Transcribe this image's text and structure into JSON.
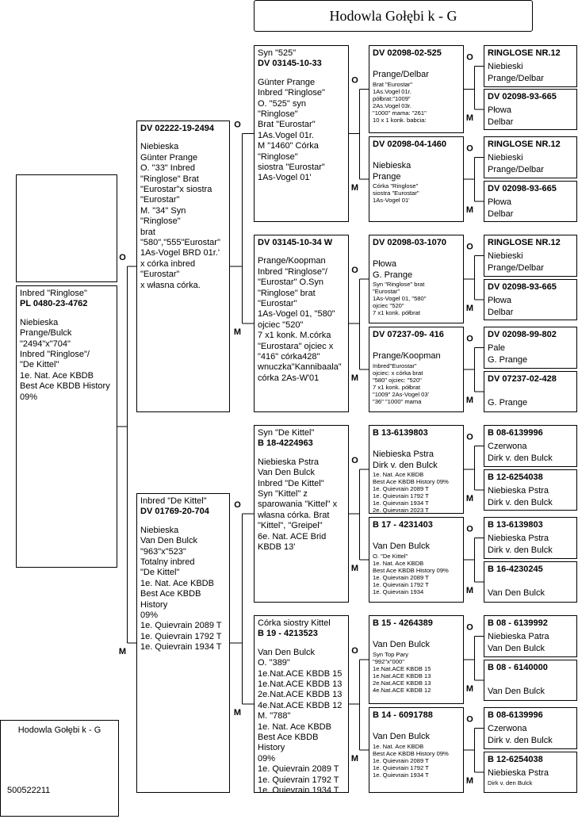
{
  "title": "Hodowla Gołębi k - G",
  "footer": {
    "number": "500522211"
  },
  "labels": {
    "father": "O",
    "mother": "M"
  },
  "subject": {
    "head": [
      "Inbred \"Ringlose\""
    ],
    "ring": "PL 0480-23-4762",
    "lines": [
      "Niebieska",
      "Prange/Bulck",
      "\"2494\"x\"704\"",
      "Inbred \"Ringlose\"/",
      "\"De Kittel\"",
      "1e. Nat. Ace KBDB",
      "Best Ace KBDB History",
      "09%"
    ]
  },
  "parents": [
    {
      "ring": "DV 02222-19-2494",
      "lines": [
        "Niebieska",
        "Günter Prange",
        "O. \"33\" Inbred",
        "\"Ringlose\" Brat",
        "\"Eurostar\"x siostra",
        "\"Eurostar\"",
        "M. \"34\" Syn \"Ringlose\"",
        "brat",
        "\"580\",\"555\"Eurostar\"",
        " 1As-Vogel BRD 01r.'",
        "x córka inbred",
        "\"Eurostar\"",
        "x własna córka."
      ]
    },
    {
      "head": [
        "Inbred \"De Kittel\""
      ],
      "ring": "DV 01769-20-704",
      "lines": [
        "Niebieska",
        "Van Den Bulck",
        "\"963\"x\"523\"",
        "Totalny inbred",
        "\"De Kittel\"",
        "1e. Nat. Ace KBDB",
        "Best Ace KBDB History",
        "09%",
        "1e. Quievrain 2089 T",
        "1e. Quievrain 1792 T",
        "1e. Quievrain 1934 T"
      ]
    }
  ],
  "grandparents": [
    {
      "head": [
        "Syn \"525\""
      ],
      "ring": "DV 03145-10-33",
      "lines": [
        "Günter Prange",
        "Inbred \"Ringlose\"",
        "O. \"525\" syn \"Ringlose\"",
        "Brat \"Eurostar\"",
        "1As.Vogel 01r.",
        "M \"1460\" Córka",
        "\"Ringlose\"",
        "siostra \"Eurostar\"",
        "1As-Vogel 01'"
      ]
    },
    {
      "ring": "DV 03145-10-34 W",
      "lines": [
        "Prange/Koopman",
        "Inbred \"Ringlose\"/",
        "\"Eurostar\" O.Syn",
        "\"Ringlose\" brat",
        "\"Eurostar\"",
        "1As-Vogel 01, \"580\"",
        "ojciec \"520\"",
        "7 x1 konk.  M.córka",
        "\"Eurostara\" ojciec x",
        "\"416\"  córka428\"",
        "wnuczka\"Kannibaala\"",
        "córka 2As-W'01"
      ]
    },
    {
      "head": [
        "Syn \"De Kittel\""
      ],
      "ring": "B 18-4224963",
      "lines": [
        "Niebieska Pstra",
        "Van Den Bulck",
        "Inbred \"De Kittel\"",
        "Syn \"Kittel\" z",
        "sparowania \"Kittel\" x",
        "własna córka. Brat",
        "\"Kittel\", \"Greipel\"",
        "6e. Nat. ACE Brid",
        "KBDB 13'"
      ]
    },
    {
      "head": [
        "Córka siostry Kittel"
      ],
      "ring": "B 19 - 4213523",
      "lines": [
        "Van Den Bulck",
        "O. \"389\"",
        "1e.Nat.ACE KBDB 15",
        "1e.Nat.ACE KBDB 13",
        "2e.Nat.ACE KBDB 13",
        "4e.Nat.ACE KBDB 12",
        "M. \"788\"",
        "1e. Nat. Ace KBDB",
        "Best Ace KBDB History",
        "09%",
        "1e. Quievrain 2089 T",
        "1e. Quievrain 1792 T",
        "1e. Quievrain 1934 T"
      ]
    }
  ],
  "great_grandparents": [
    {
      "ring": "DV 02098-02-525",
      "lines": [
        "Prange/Delbar"
      ],
      "notes": [
        "Brat \"Eurostar\"",
        "1As.Vogel 01r.",
        "półbrat:\"1009\"",
        "2As.Vogel 03r.",
        "\"1000\" mama: \"261\"",
        "10 x 1 konk. babcia:"
      ]
    },
    {
      "ring": "DV 02098-04-1460",
      "lines": [
        "Niebieska",
        "Prange"
      ],
      "notes": [
        "Córka \"Ringlose\"",
        "siostra \"Eurostar\"",
        "1As-Vogel 01'"
      ]
    },
    {
      "ring": "DV 02098-03-1070",
      "lines": [
        "Płowa",
        "G. Prange"
      ],
      "notes": [
        "Syn \"Ringlose\" brat",
        "\"Eurostar\"",
        "1As-Vogel 01, \"580\"",
        "ojciec \"520\"",
        "7 x1 konk. półbrat"
      ]
    },
    {
      "ring": "DV 07237-09- 416",
      "lines": [
        "Prange/Koopman"
      ],
      "notes": [
        "Inbred\"Eurostar\"",
        "ojciec: x córka brat",
        "\"580\" ojciec: \"520\"",
        "7 x1 konk. półbrat",
        "\"1009\" 2As-Vogel 03'",
        "\"36\" \"1000\" mama"
      ]
    },
    {
      "ring": "B 13-6139803",
      "lines": [
        "Niebieska Pstra",
        "Dirk v. den Bulck"
      ],
      "notes": [
        "1e. Nat. Ace KBDB",
        "Best Ace KBDB History 09%",
        "1e. Quievrain 2089 T",
        "1e. Quievrain 1792 T",
        "1e. Quievrain 1934 T",
        "2e. Quievrain 2023 T"
      ]
    },
    {
      "ring": "B 17 - 4231403",
      "lines": [
        "Van Den Bulck"
      ],
      "notes": [
        "O.  \"De Kittel\"",
        "1e. Nat. Ace KBDB",
        "Best Ace KBDB History 09%",
        "1e. Quievrain 2089 T",
        "1e. Quievrain 1792 T",
        "1e. Quievrain 1934"
      ]
    },
    {
      "ring": "B 15 - 4264389",
      "lines": [
        "Van Den Bulck"
      ],
      "notes": [
        "Syn Top Pary",
        "\"992\"x\"000\"",
        "1e.Nat.ACE KBDB 15",
        "1e.Nat.ACE KBDB 13",
        "2e.Nat.ACE KBDB 13",
        "4e.Nat.ACE KBDB 12"
      ]
    },
    {
      "ring": "B 14 - 6091788",
      "lines": [
        "Van Den Bulck"
      ],
      "notes": [
        "1e. Nat. Ace KBDB",
        "Best Ace KBDB History 09%",
        "1e. Quievrain 2089 T",
        "1e. Quievrain 1792 T",
        "1e. Quievrain 1934 T"
      ]
    }
  ],
  "great_great_grandparents": [
    {
      "ring": "RINGLOSE NR.12",
      "lines": [
        "Niebieski",
        "Prange/Delbar"
      ]
    },
    {
      "ring": "DV 02098-93-665",
      "lines": [
        "Płowa",
        "Delbar"
      ]
    },
    {
      "ring": "RINGLOSE NR.12",
      "lines": [
        "Niebieski",
        "Prange/Delbar"
      ]
    },
    {
      "ring": "DV 02098-93-665",
      "lines": [
        "Płowa",
        "Delbar"
      ]
    },
    {
      "ring": "RINGLOSE NR.12",
      "lines": [
        "Niebieski",
        "Prange/Delbar"
      ]
    },
    {
      "ring": "DV 02098-93-665",
      "lines": [
        "Płowa",
        "Delbar"
      ]
    },
    {
      "ring": "DV 02098-99-802",
      "lines": [
        "Pale",
        "G. Prange"
      ]
    },
    {
      "ring": "DV 07237-02-428",
      "lines": [
        "G. Prange"
      ]
    },
    {
      "ring": "B 08-6139996",
      "lines": [
        "Czerwona",
        "Dirk v. den Bulck"
      ]
    },
    {
      "ring": "B 12-6254038",
      "lines": [
        "Niebieska Pstra",
        "Dirk v. den Bulck"
      ]
    },
    {
      "ring": "B 13-6139803",
      "lines": [
        "Niebieska Pstra",
        "Dirk v. den Bulck"
      ]
    },
    {
      "ring": "B 16-4230245",
      "lines": [
        "Van Den Bulck"
      ]
    },
    {
      "ring": "B 08 - 6139992",
      "lines": [
        "Niebieska Patra",
        "Van Den Bulck"
      ]
    },
    {
      "ring": "B 08 - 6140000",
      "lines": [
        "Van Den Bulck"
      ]
    },
    {
      "ring": "B 08-6139996",
      "lines": [
        "Czerwona",
        "Dirk v. den Bulck"
      ]
    },
    {
      "ring": "B 12-6254038",
      "lines": [
        "Niebieska Pstra"
      ],
      "notes": [
        "Dirk v. den Bulck"
      ]
    }
  ]
}
